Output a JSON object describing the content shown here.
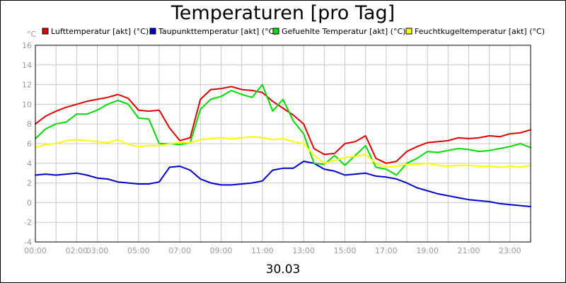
{
  "chart_data": {
    "type": "line",
    "title": "Temperaturen [pro Tag]",
    "ylabel": "°C",
    "xlabel": "30.03",
    "ylim": [
      -4,
      16
    ],
    "xlim": [
      0,
      24
    ],
    "grid": true,
    "legend_position": "top",
    "y_ticks": [
      "16",
      "14",
      "12",
      "10",
      "8",
      "6",
      "4",
      "2",
      "0",
      "-2",
      "-4"
    ],
    "x_ticks": [
      {
        "h": 0,
        "label": "00:00"
      },
      {
        "h": 2,
        "label": "02:00"
      },
      {
        "h": 3,
        "label": "03:00"
      },
      {
        "h": 5,
        "label": "05:00"
      },
      {
        "h": 7,
        "label": "07:00"
      },
      {
        "h": 9,
        "label": "09:00"
      },
      {
        "h": 11,
        "label": "11:00"
      },
      {
        "h": 13,
        "label": "13:00"
      },
      {
        "h": 15,
        "label": "15:00"
      },
      {
        "h": 17,
        "label": "17:00"
      },
      {
        "h": 19,
        "label": "19:00"
      },
      {
        "h": 21,
        "label": "21:00"
      },
      {
        "h": 23,
        "label": "23:00"
      }
    ],
    "x": [
      0,
      0.5,
      1,
      1.5,
      2,
      2.5,
      3,
      3.5,
      4,
      4.5,
      5,
      5.5,
      6,
      6.5,
      7,
      7.5,
      8,
      8.5,
      9,
      9.5,
      10,
      10.5,
      11,
      11.5,
      12,
      12.5,
      13,
      13.5,
      14,
      14.5,
      15,
      15.5,
      16,
      16.5,
      17,
      17.5,
      18,
      18.5,
      19,
      19.5,
      20,
      20.5,
      21,
      21.5,
      22,
      22.5,
      23,
      23.5,
      24
    ],
    "series": [
      {
        "name": "Lufttemperatur [akt] (°C)",
        "color": "#e00000",
        "values": [
          8.0,
          8.8,
          9.3,
          9.7,
          10.0,
          10.3,
          10.5,
          10.7,
          11.0,
          10.6,
          9.4,
          9.3,
          9.4,
          7.6,
          6.3,
          6.6,
          10.5,
          11.5,
          11.6,
          11.8,
          11.5,
          11.4,
          11.2,
          10.3,
          9.6,
          8.9,
          8.0,
          5.5,
          4.9,
          5.0,
          6.0,
          6.2,
          6.8,
          4.5,
          4.0,
          4.2,
          5.2,
          5.7,
          6.1,
          6.2,
          6.3,
          6.6,
          6.5,
          6.6,
          6.8,
          6.7,
          7.0,
          7.1,
          7.4
        ]
      },
      {
        "name": "Taupunkttemperatur [akt] (°C)",
        "color": "#0000cc",
        "values": [
          2.8,
          2.9,
          2.8,
          2.9,
          3.0,
          2.8,
          2.5,
          2.4,
          2.1,
          2.0,
          1.9,
          1.9,
          2.1,
          3.6,
          3.7,
          3.3,
          2.4,
          2.0,
          1.8,
          1.8,
          1.9,
          2.0,
          2.2,
          3.3,
          3.5,
          3.5,
          4.2,
          4.0,
          3.4,
          3.2,
          2.8,
          2.9,
          3.0,
          2.7,
          2.6,
          2.4,
          2.0,
          1.5,
          1.2,
          0.9,
          0.7,
          0.5,
          0.3,
          0.2,
          0.1,
          -0.1,
          -0.2,
          -0.3,
          -0.4
        ]
      },
      {
        "name": "Gefuehlte Temperatur [akt] (°C)",
        "color": "#00dd00",
        "values": [
          6.5,
          7.5,
          8.0,
          8.2,
          9.0,
          9.0,
          9.4,
          10.0,
          10.4,
          10.0,
          8.6,
          8.5,
          6.0,
          6.0,
          5.9,
          6.1,
          9.5,
          10.5,
          10.8,
          11.4,
          11.0,
          10.7,
          12.0,
          9.3,
          10.5,
          8.3,
          7.0,
          4.0,
          3.9,
          4.8,
          3.8,
          4.8,
          5.8,
          3.6,
          3.4,
          2.8,
          4.0,
          4.5,
          5.2,
          5.1,
          5.3,
          5.5,
          5.4,
          5.2,
          5.3,
          5.5,
          5.7,
          6.0,
          5.6
        ]
      },
      {
        "name": "Feuchtkugeltemperatur [akt] (°C)",
        "color": "#ffff00",
        "values": [
          5.6,
          5.9,
          6.0,
          6.3,
          6.4,
          6.3,
          6.2,
          6.1,
          6.4,
          5.9,
          5.7,
          5.8,
          5.8,
          6.0,
          6.1,
          6.1,
          6.4,
          6.5,
          6.6,
          6.5,
          6.6,
          6.7,
          6.6,
          6.4,
          6.5,
          6.2,
          6.0,
          4.8,
          4.0,
          4.3,
          4.6,
          4.7,
          4.9,
          4.0,
          3.6,
          3.7,
          3.9,
          3.9,
          4.0,
          3.8,
          3.7,
          3.8,
          3.8,
          3.7,
          3.7,
          3.6,
          3.7,
          3.6,
          3.8
        ]
      }
    ]
  }
}
